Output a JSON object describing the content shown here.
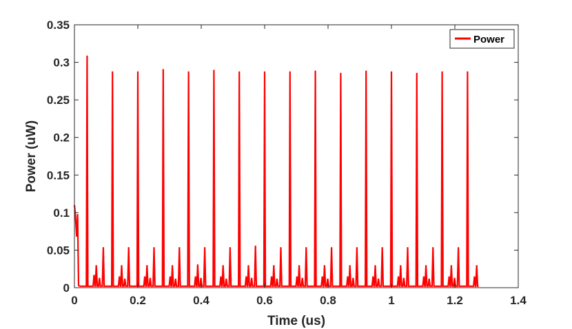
{
  "chart_data": {
    "type": "line",
    "title": "",
    "xlabel": "Time (us)",
    "ylabel": "Power (uW)",
    "xlim": [
      0,
      1.4
    ],
    "ylim": [
      0,
      0.35
    ],
    "x_ticks": [
      "0",
      "0.2",
      "0.4",
      "0.6",
      "0.8",
      "1",
      "1.2",
      "1.4"
    ],
    "y_ticks": [
      "0",
      "0.05",
      "0.1",
      "0.15",
      "0.2",
      "0.25",
      "0.3",
      "0.35"
    ],
    "grid": false,
    "legend_position": "top-right",
    "line_color": "#ff0000",
    "series": [
      {
        "name": "Power",
        "initial": {
          "x": [
            0,
            0.003,
            0.007,
            0.01,
            0.013,
            0.017
          ],
          "y": [
            0.11,
            0.097,
            0.068,
            0.098,
            0.003,
            0.002
          ]
        },
        "main_peaks": {
          "x": [
            0.04,
            0.12,
            0.2,
            0.28,
            0.36,
            0.44,
            0.52,
            0.6,
            0.68,
            0.76,
            0.84,
            0.92,
            1.0,
            1.08,
            1.16,
            1.24
          ],
          "y": [
            0.309,
            0.288,
            0.288,
            0.291,
            0.288,
            0.29,
            0.288,
            0.288,
            0.288,
            0.289,
            0.286,
            0.289,
            0.288,
            0.286,
            0.288,
            0.288
          ]
        },
        "secondary_peaks": {
          "x": [
            0.062,
            0.069,
            0.079,
            0.091,
            0.142,
            0.149,
            0.159,
            0.171,
            0.222,
            0.229,
            0.239,
            0.251,
            0.302,
            0.309,
            0.319,
            0.331,
            0.382,
            0.389,
            0.399,
            0.411,
            0.462,
            0.469,
            0.479,
            0.491,
            0.542,
            0.549,
            0.559,
            0.571,
            0.622,
            0.629,
            0.639,
            0.651,
            0.702,
            0.709,
            0.719,
            0.731,
            0.782,
            0.789,
            0.799,
            0.811,
            0.862,
            0.869,
            0.879,
            0.891,
            0.942,
            0.949,
            0.959,
            0.971,
            1.022,
            1.029,
            1.039,
            1.051,
            1.102,
            1.109,
            1.119,
            1.131,
            1.182,
            1.189,
            1.199,
            1.211,
            1.262,
            1.269
          ],
          "y": [
            0.017,
            0.03,
            0.013,
            0.054,
            0.015,
            0.03,
            0.012,
            0.054,
            0.015,
            0.03,
            0.013,
            0.054,
            0.015,
            0.03,
            0.012,
            0.054,
            0.015,
            0.031,
            0.013,
            0.054,
            0.015,
            0.03,
            0.012,
            0.054,
            0.015,
            0.03,
            0.013,
            0.056,
            0.015,
            0.03,
            0.012,
            0.054,
            0.015,
            0.03,
            0.013,
            0.054,
            0.015,
            0.03,
            0.012,
            0.054,
            0.015,
            0.03,
            0.013,
            0.054,
            0.015,
            0.03,
            0.012,
            0.054,
            0.015,
            0.03,
            0.013,
            0.054,
            0.015,
            0.03,
            0.012,
            0.054,
            0.015,
            0.03,
            0.013,
            0.054,
            0.015,
            0.03
          ]
        },
        "baseline": 0.002,
        "x_end": 1.275
      }
    ]
  }
}
